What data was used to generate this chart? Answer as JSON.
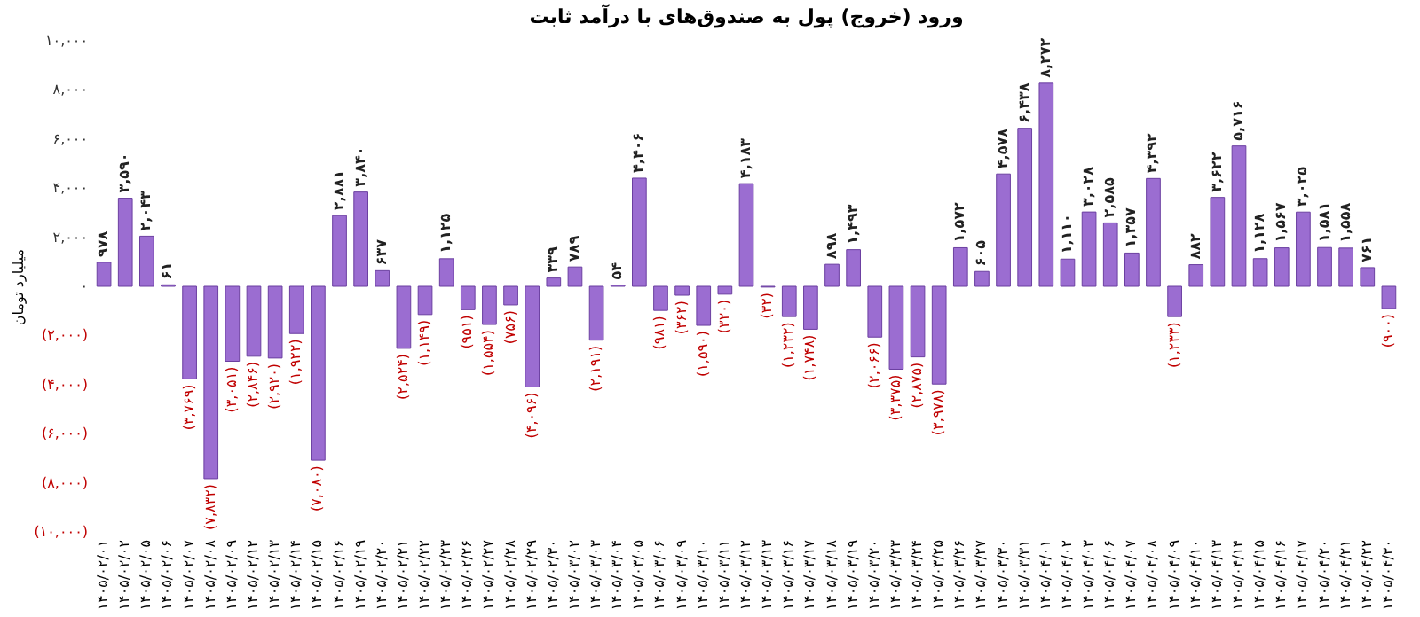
{
  "chart_data": {
    "type": "bar",
    "title": "ورود (خروج) پول به صندوق‌های با درآمد ثابت",
    "ylabel": "میلیارد تومان",
    "categories": [
      "۱۴۰۵/۰۲/۰۱",
      "۱۴۰۵/۰۲/۰۲",
      "۱۴۰۵/۰۲/۰۵",
      "۱۴۰۵/۰۲/۰۶",
      "۱۴۰۵/۰۲/۰۷",
      "۱۴۰۵/۰۲/۰۸",
      "۱۴۰۵/۰۲/۰۹",
      "۱۴۰۵/۰۲/۱۲",
      "۱۴۰۵/۰۲/۱۳",
      "۱۴۰۵/۰۲/۱۴",
      "۱۴۰۵/۰۲/۱۵",
      "۱۴۰۵/۰۲/۱۶",
      "۱۴۰۵/۰۲/۱۹",
      "۱۴۰۵/۰۲/۲۰",
      "۱۴۰۵/۰۲/۲۱",
      "۱۴۰۵/۰۲/۲۲",
      "۱۴۰۵/۰۲/۲۳",
      "۱۴۰۵/۰۲/۲۶",
      "۱۴۰۵/۰۲/۲۷",
      "۱۴۰۵/۰۲/۲۸",
      "۱۴۰۵/۰۲/۲۹",
      "۱۴۰۵/۰۲/۳۰",
      "۱۴۰۵/۰۳/۰۲",
      "۱۴۰۵/۰۳/۰۳",
      "۱۴۰۵/۰۳/۰۴",
      "۱۴۰۵/۰۳/۰۵",
      "۱۴۰۵/۰۳/۰۶",
      "۱۴۰۵/۰۳/۰۹",
      "۱۴۰۵/۰۳/۱۰",
      "۱۴۰۵/۰۳/۱۱",
      "۱۴۰۵/۰۳/۱۲",
      "۱۴۰۵/۰۳/۱۳",
      "۱۴۰۵/۰۳/۱۶",
      "۱۴۰۵/۰۳/۱۷",
      "۱۴۰۵/۰۳/۱۸",
      "۱۴۰۵/۰۳/۱۹",
      "۱۴۰۵/۰۳/۲۰",
      "۱۴۰۵/۰۳/۲۳",
      "۱۴۰۵/۰۳/۲۴",
      "۱۴۰۵/۰۳/۲۵",
      "۱۴۰۵/۰۳/۲۶",
      "۱۴۰۵/۰۳/۲۷",
      "۱۴۰۵/۰۳/۳۰",
      "۱۴۰۵/۰۳/۳۱",
      "۱۴۰۵/۰۴/۰۱",
      "۱۴۰۵/۰۴/۰۲",
      "۱۴۰۵/۰۴/۰۳",
      "۱۴۰۵/۰۴/۰۶",
      "۱۴۰۵/۰۴/۰۷",
      "۱۴۰۵/۰۴/۰۸",
      "۱۴۰۵/۰۴/۰۹",
      "۱۴۰۵/۰۴/۱۰",
      "۱۴۰۵/۰۴/۱۳",
      "۱۴۰۵/۰۴/۱۴",
      "۱۴۰۵/۰۴/۱۵",
      "۱۴۰۵/۰۴/۱۶",
      "۱۴۰۵/۰۴/۱۷",
      "۱۴۰۵/۰۴/۲۰",
      "۱۴۰۵/۰۴/۲۱",
      "۱۴۰۵/۰۴/۲۲",
      "۱۴۰۵/۰۴/۳۰"
    ],
    "values": [
      978,
      3590,
      2043,
      61,
      -3769,
      -7832,
      -3051,
      -2846,
      -2920,
      -1922,
      -7080,
      2881,
      3840,
      637,
      -2524,
      -1149,
      1125,
      -951,
      -1554,
      -756,
      -4096,
      339,
      789,
      -2191,
      54,
      4406,
      -981,
      -362,
      -1590,
      -320,
      4183,
      -32,
      -1232,
      -1748,
      898,
      1493,
      -2066,
      -3375,
      -2875,
      -3978,
      1572,
      605,
      4578,
      6438,
      8272,
      1110,
      3028,
      2585,
      1357,
      4392,
      -1233,
      882,
      3622,
      5716,
      1128,
      1567,
      3025,
      1581,
      1558,
      761,
      -900
    ],
    "value_labels": [
      "۹۷۸",
      "۳,۵۹۰",
      "۲,۰۴۳",
      "۶۱",
      "(۳,۷۶۹)",
      "(۷,۸۳۲)",
      "(۳,۰۵۱)",
      "(۲,۸۴۶)",
      "(۲,۹۲۰)",
      "(۱,۹۲۲)",
      "(۷,۰۸۰)",
      "۲,۸۸۱",
      "۳,۸۴۰",
      "۶۳۷",
      "(۲,۵۲۴)",
      "(۱,۱۴۹)",
      "۱,۱۲۵",
      "(۹۵۱)",
      "(۱,۵۵۴)",
      "(۷۵۶)",
      "(۴,۰۹۶)",
      "۳۳۹",
      "۷۸۹",
      "(۲,۱۹۱)",
      "۵۴",
      "۴,۴۰۶",
      "(۹۸۱)",
      "(۳۶۲)",
      "(۱,۵۹۰)",
      "(۳۲۰)",
      "۴,۱۸۳",
      "(۳۲)",
      "(۱,۲۳۲)",
      "(۱,۷۴۸)",
      "۸۹۸",
      "۱,۴۹۳",
      "(۲,۰۶۶)",
      "(۳,۳۷۵)",
      "(۲,۸۷۵)",
      "(۳,۹۷۸)",
      "۱,۵۷۲",
      "۶۰۵",
      "۴,۵۷۸",
      "۶,۴۳۸",
      "۸,۲۷۲",
      "۱,۱۱۰",
      "۳,۰۲۸",
      "۲,۵۸۵",
      "۱,۳۵۷",
      "۴,۳۹۲",
      "(۱,۲۳۳)",
      "۸۸۲",
      "۳,۶۲۲",
      "۵,۷۱۶",
      "۱,۱۲۸",
      "۱,۵۶۷",
      "۳,۰۲۵",
      "۱,۵۸۱",
      "۱,۵۵۸",
      "۷۶۱",
      "(۹۰۰)"
    ],
    "color": "#9b6dd1",
    "ylim": [
      -10000,
      10000
    ],
    "yticks": [
      {
        "value": 10000,
        "label": "۱۰,۰۰۰"
      },
      {
        "value": 8000,
        "label": "۸,۰۰۰"
      },
      {
        "value": 6000,
        "label": "۶,۰۰۰"
      },
      {
        "value": 4000,
        "label": "۴,۰۰۰"
      },
      {
        "value": 2000,
        "label": "۲,۰۰۰"
      },
      {
        "value": 0,
        "label": "۰"
      },
      {
        "value": -2000,
        "label": "(۲,۰۰۰)"
      },
      {
        "value": -4000,
        "label": "(۴,۰۰۰)"
      },
      {
        "value": -6000,
        "label": "(۶,۰۰۰)"
      },
      {
        "value": -8000,
        "label": "(۸,۰۰۰)"
      },
      {
        "value": -10000,
        "label": "(۱۰,۰۰۰)"
      }
    ],
    "grid": false
  }
}
